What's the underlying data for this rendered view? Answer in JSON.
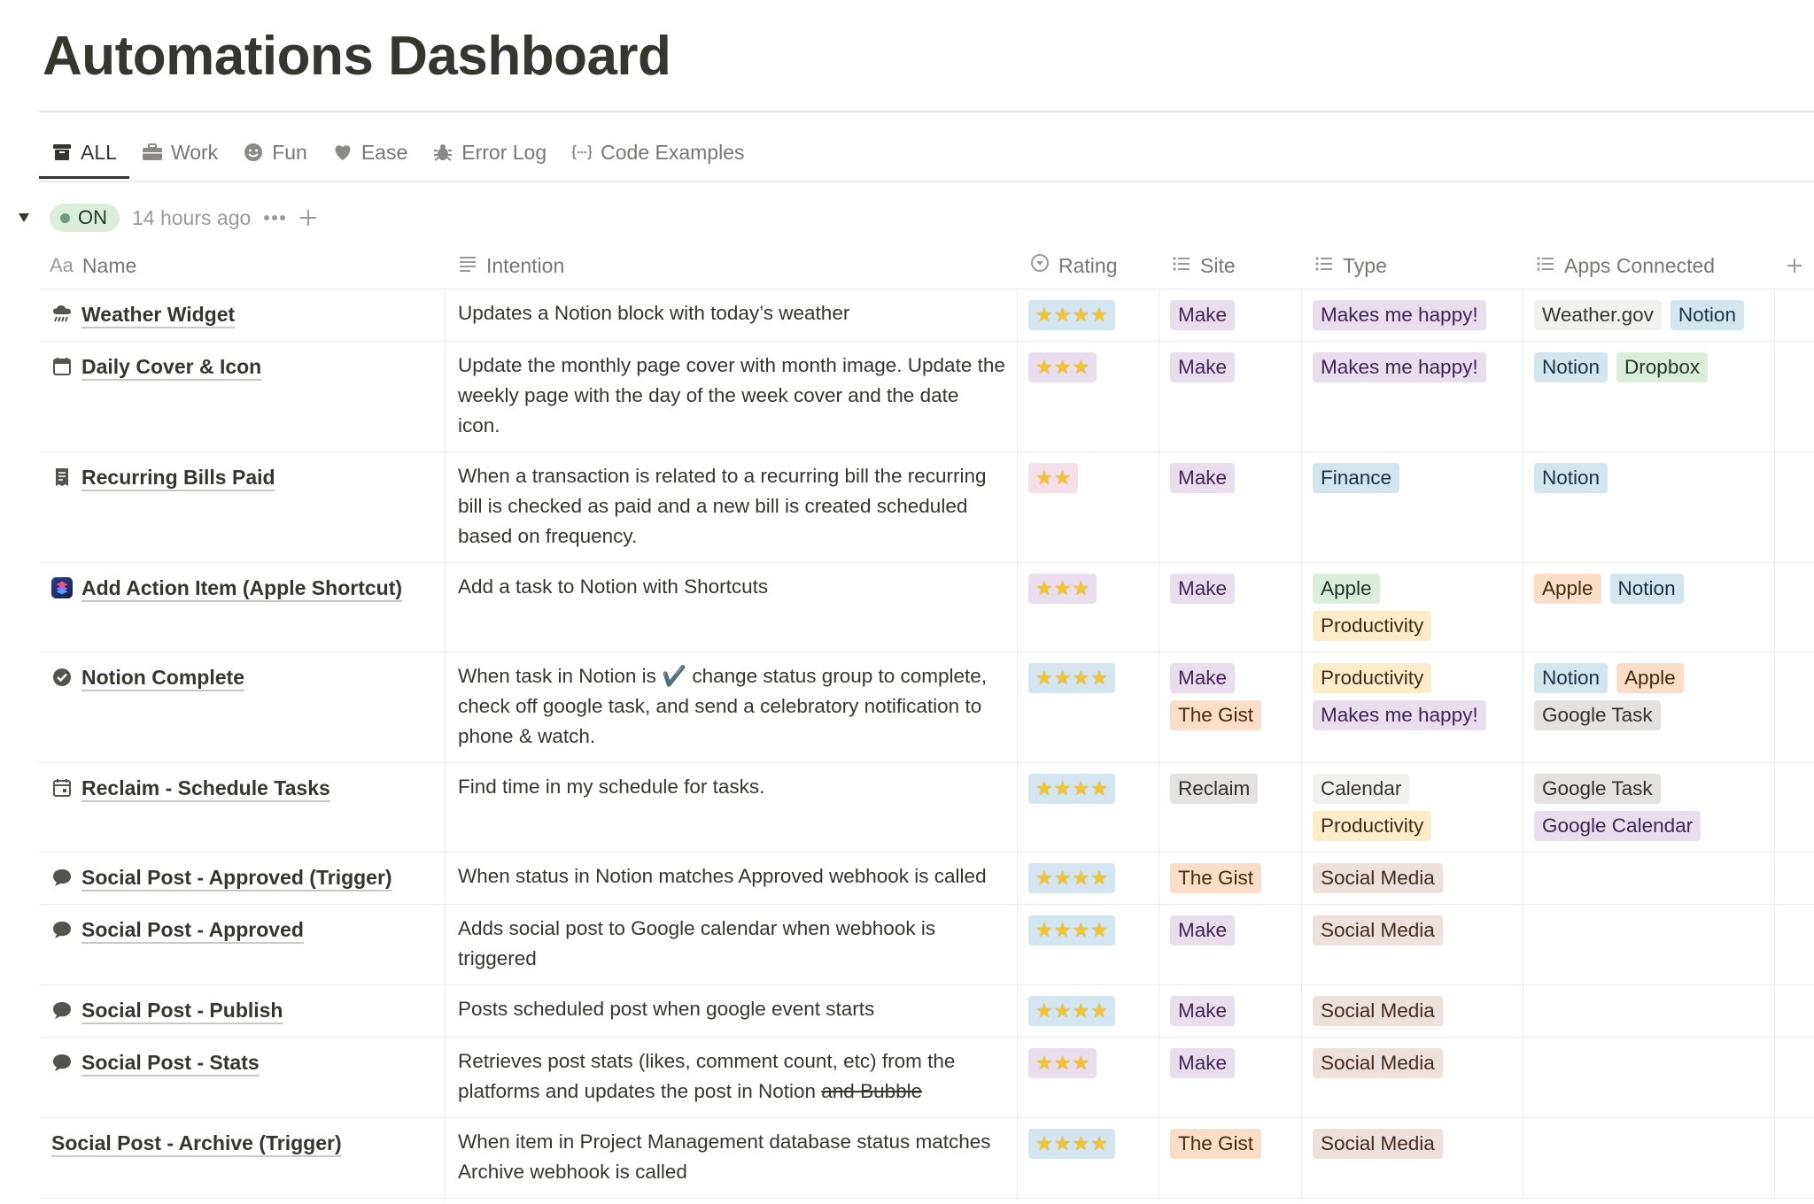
{
  "page": {
    "title": "Automations Dashboard"
  },
  "tabs": [
    {
      "label": "ALL",
      "icon": "archive-icon",
      "active": true
    },
    {
      "label": "Work",
      "icon": "briefcase-icon"
    },
    {
      "label": "Fun",
      "icon": "smiley-icon"
    },
    {
      "label": "Ease",
      "icon": "heart-icon"
    },
    {
      "label": "Error Log",
      "icon": "bug-icon"
    },
    {
      "label": "Code Examples",
      "icon": "code-braces-icon"
    }
  ],
  "group": {
    "status": "ON",
    "time": "14 hours ago"
  },
  "columns": {
    "name": "Name",
    "name_prefix": "Aa",
    "intention": "Intention",
    "rating": "Rating",
    "site": "Site",
    "type": "Type",
    "apps": "Apps Connected"
  },
  "colors": {
    "purple": "#e8deee",
    "orange": "#fadec9",
    "gray": "#e3e2e0",
    "brown": "#eee0da",
    "yellow": "#fdecc8",
    "green": "#dbeddb",
    "blue": "#d3e5ef",
    "pink": "#f5e0e9",
    "star": "#f4c430"
  },
  "rows": [
    {
      "name": "Weather Widget",
      "icon": "rain-cloud-icon",
      "intention": "Updates a Notion block with today’s weather",
      "rating": 4,
      "rating_bg": "blue",
      "site": [
        {
          "label": "Make",
          "color": "purple"
        }
      ],
      "type": [
        {
          "label": "Makes me happy!",
          "color": "purple"
        }
      ],
      "apps": [
        {
          "label": "Weather.gov",
          "color": "light"
        },
        {
          "label": "Notion",
          "color": "blue"
        }
      ]
    },
    {
      "name": "Daily Cover & Icon",
      "icon": "calendar-icon",
      "intention": "Update the monthly page cover with month image. Update the weekly page with the day of the week cover and the date icon.",
      "rating": 3,
      "rating_bg": "purple",
      "site": [
        {
          "label": "Make",
          "color": "purple"
        }
      ],
      "type": [
        {
          "label": "Makes me happy!",
          "color": "purple"
        }
      ],
      "apps": [
        {
          "label": "Notion",
          "color": "blue"
        },
        {
          "label": "Dropbox",
          "color": "green"
        }
      ]
    },
    {
      "name": "Recurring Bills Paid",
      "icon": "receipt-icon",
      "intention": "When a transaction is related to a recurring bill the recurring bill is checked as paid and a new bill is created scheduled based on frequency.",
      "rating": 2,
      "rating_bg": "pink",
      "site": [
        {
          "label": "Make",
          "color": "purple"
        }
      ],
      "type": [
        {
          "label": "Finance",
          "color": "blue"
        }
      ],
      "apps": [
        {
          "label": "Notion",
          "color": "blue"
        }
      ]
    },
    {
      "name": "Add Action Item (Apple Shortcut)",
      "icon": "shortcuts-app-icon",
      "intention": "Add a task to Notion with Shortcuts",
      "rating": 3,
      "rating_bg": "purple",
      "site": [
        {
          "label": "Make",
          "color": "purple"
        }
      ],
      "type": [
        {
          "label": "Apple",
          "color": "green"
        },
        {
          "label": "Productivity",
          "color": "yellow"
        }
      ],
      "apps": [
        {
          "label": "Apple",
          "color": "orange"
        },
        {
          "label": "Notion",
          "color": "blue"
        }
      ]
    },
    {
      "name": "Notion Complete",
      "icon": "check-circle-icon",
      "intention": "When task in Notion is ✔️ change status group to complete, check off google task, and send a celebratory notification to phone & watch.",
      "rating": 4,
      "rating_bg": "blue",
      "site": [
        {
          "label": "Make",
          "color": "purple"
        },
        {
          "label": "The Gist",
          "color": "orange"
        }
      ],
      "type": [
        {
          "label": "Productivity",
          "color": "yellow"
        },
        {
          "label": "Makes me happy!",
          "color": "purple"
        }
      ],
      "apps": [
        {
          "label": "Notion",
          "color": "blue"
        },
        {
          "label": "Apple",
          "color": "orange"
        },
        {
          "label": "Google Task",
          "color": "gray"
        }
      ]
    },
    {
      "name": "Reclaim - Schedule Tasks",
      "icon": "calendar-clock-icon",
      "intention": "Find time in my schedule for tasks.",
      "rating": 4,
      "rating_bg": "blue",
      "site": [
        {
          "label": "Reclaim",
          "color": "gray"
        }
      ],
      "type": [
        {
          "label": "Calendar",
          "color": "light"
        },
        {
          "label": "Productivity",
          "color": "yellow"
        }
      ],
      "apps": [
        {
          "label": "Google Task",
          "color": "gray"
        },
        {
          "label": "Google Calendar",
          "color": "purple"
        }
      ]
    },
    {
      "name": "Social Post - Approved (Trigger)",
      "icon": "speech-bubble-icon",
      "intention": "When status in Notion matches Approved webhook is called",
      "rating": 4,
      "rating_bg": "blue",
      "site": [
        {
          "label": "The Gist",
          "color": "orange"
        }
      ],
      "type": [
        {
          "label": "Social Media",
          "color": "brown"
        }
      ],
      "apps": []
    },
    {
      "name": "Social Post - Approved",
      "icon": "speech-bubble-icon",
      "intention": "Adds social post to Google calendar when webhook is triggered",
      "rating": 4,
      "rating_bg": "blue",
      "site": [
        {
          "label": "Make",
          "color": "purple"
        }
      ],
      "type": [
        {
          "label": "Social Media",
          "color": "brown"
        }
      ],
      "apps": []
    },
    {
      "name": "Social Post - Publish",
      "icon": "speech-bubble-icon",
      "intention": "Posts scheduled post when google event starts",
      "rating": 4,
      "rating_bg": "blue",
      "site": [
        {
          "label": "Make",
          "color": "purple"
        }
      ],
      "type": [
        {
          "label": "Social Media",
          "color": "brown"
        }
      ],
      "apps": []
    },
    {
      "name": "Social Post - Stats",
      "icon": "speech-bubble-icon",
      "intention": "Retrieves post stats (likes, comment count, etc) from the platforms and updates the post in Notion",
      "intention_strike": "and Bubble",
      "rating": 3,
      "rating_bg": "purple",
      "site": [
        {
          "label": "Make",
          "color": "purple"
        }
      ],
      "type": [
        {
          "label": "Social Media",
          "color": "brown"
        }
      ],
      "apps": []
    },
    {
      "name": "Social Post - Archive (Trigger)",
      "icon": "",
      "intention": "When item in Project Management database status matches Archive webhook is called",
      "rating": 4,
      "rating_bg": "blue",
      "site": [
        {
          "label": "The Gist",
          "color": "orange"
        }
      ],
      "type": [
        {
          "label": "Social Media",
          "color": "brown"
        }
      ],
      "apps": []
    }
  ]
}
